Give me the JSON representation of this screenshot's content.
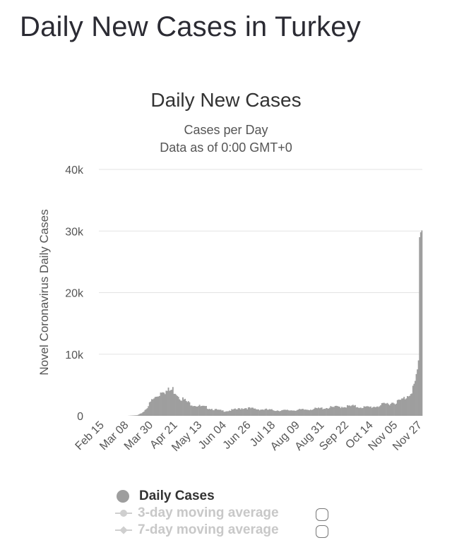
{
  "page": {
    "title": "Daily New Cases in Turkey"
  },
  "chart_data": {
    "type": "bar",
    "title": "Daily New Cases",
    "subtitle": "Cases per Day",
    "subtitle2": "Data as of 0:00 GMT+0",
    "ylabel": "Novel Coronavirus Daily Cases",
    "xlabel": "",
    "ylim": [
      0,
      40000
    ],
    "yticks": [
      0,
      10000,
      20000,
      30000,
      40000
    ],
    "ytick_labels": [
      "0",
      "10k",
      "20k",
      "30k",
      "40k"
    ],
    "x_tick_labels": [
      "Feb 15",
      "Mar 08",
      "Mar 30",
      "Apr 21",
      "May 13",
      "Jun 04",
      "Jun 26",
      "Jul 18",
      "Aug 09",
      "Aug 31",
      "Sep 22",
      "Oct 14",
      "Nov 05",
      "Nov 27"
    ],
    "x_start": "Feb 15",
    "x_end": "Nov 30",
    "days": 290,
    "grid": true,
    "series": [
      {
        "name": "Daily Cases",
        "color": "#9e9e9e"
      }
    ],
    "control_points": [
      [
        0,
        0
      ],
      [
        25,
        0
      ],
      [
        34,
        100
      ],
      [
        37,
        350
      ],
      [
        40,
        800
      ],
      [
        44,
        1800
      ],
      [
        47,
        2700
      ],
      [
        51,
        3300
      ],
      [
        54,
        3900
      ],
      [
        57,
        4800
      ],
      [
        60,
        4300
      ],
      [
        63,
        4400
      ],
      [
        66,
        4600
      ],
      [
        69,
        4200
      ],
      [
        72,
        3400
      ],
      [
        76,
        2800
      ],
      [
        80,
        2300
      ],
      [
        84,
        2000
      ],
      [
        88,
        1800
      ],
      [
        92,
        1600
      ],
      [
        96,
        1500
      ],
      [
        100,
        1300
      ],
      [
        104,
        1100
      ],
      [
        108,
        950
      ],
      [
        112,
        850
      ],
      [
        116,
        900
      ],
      [
        120,
        1050
      ],
      [
        124,
        1150
      ],
      [
        128,
        1350
      ],
      [
        132,
        1400
      ],
      [
        136,
        1300
      ],
      [
        140,
        1200
      ],
      [
        144,
        1150
      ],
      [
        150,
        1100
      ],
      [
        156,
        1000
      ],
      [
        162,
        950
      ],
      [
        168,
        950
      ],
      [
        174,
        1000
      ],
      [
        180,
        1050
      ],
      [
        186,
        1100
      ],
      [
        192,
        1200
      ],
      [
        198,
        1300
      ],
      [
        204,
        1400
      ],
      [
        210,
        1500
      ],
      [
        216,
        1600
      ],
      [
        222,
        1650
      ],
      [
        228,
        1700
      ],
      [
        232,
        1600
      ],
      [
        236,
        1550
      ],
      [
        240,
        1500
      ],
      [
        244,
        1550
      ],
      [
        248,
        1650
      ],
      [
        252,
        1800
      ],
      [
        256,
        2000
      ],
      [
        260,
        2200
      ],
      [
        264,
        2350
      ],
      [
        268,
        2500
      ],
      [
        272,
        2800
      ],
      [
        275,
        3200
      ],
      [
        278,
        3800
      ],
      [
        280,
        4300
      ],
      [
        282,
        5000
      ],
      [
        284,
        5800
      ],
      [
        285,
        6400
      ],
      [
        286,
        7500
      ],
      [
        287,
        9000
      ],
      [
        288,
        29000
      ],
      [
        289,
        29800
      ],
      [
        290,
        30100
      ]
    ]
  },
  "legend": {
    "daily": "Daily Cases",
    "avg3": "3-day moving average",
    "avg7": "7-day moving average"
  }
}
